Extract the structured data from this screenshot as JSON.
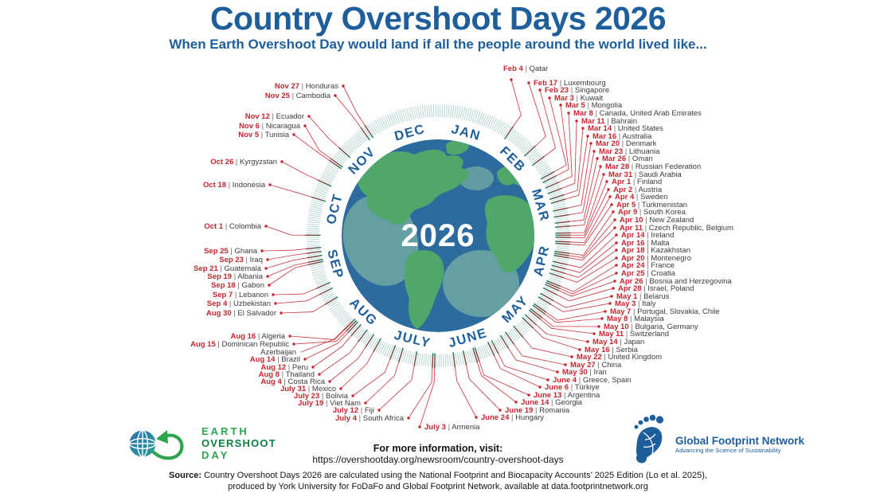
{
  "chart_data": {
    "type": "radial_calendar",
    "title": "Country Overshoot Days 2026",
    "subtitle": "When Earth Overshoot Day would land if all the people around the world lived like...",
    "center_year": "2026",
    "months": [
      "JAN",
      "FEB",
      "MAR",
      "APR",
      "MAY",
      "JUNE",
      "JULY",
      "AUG",
      "SEP",
      "OCT",
      "NOV",
      "DEC"
    ],
    "legend_note": "date | country",
    "entries": [
      {
        "date": "Feb 4",
        "countries": "Qatar"
      },
      {
        "date": "Feb 17",
        "countries": "Luxembourg"
      },
      {
        "date": "Feb 23",
        "countries": "Singapore"
      },
      {
        "date": "Mar 3",
        "countries": "Kuwait"
      },
      {
        "date": "Mar 5",
        "countries": "Mongolia"
      },
      {
        "date": "Mar 8",
        "countries": "Canada, United Arab Emirates"
      },
      {
        "date": "Mar 11",
        "countries": "Bahrain"
      },
      {
        "date": "Mar 14",
        "countries": "United States"
      },
      {
        "date": "Mar 16",
        "countries": "Australia"
      },
      {
        "date": "Mar 20",
        "countries": "Denmark"
      },
      {
        "date": "Mar 23",
        "countries": "Lithuania"
      },
      {
        "date": "Mar 26",
        "countries": "Oman"
      },
      {
        "date": "Mar 28",
        "countries": "Russian Federation"
      },
      {
        "date": "Mar 31",
        "countries": "Saudi Arabia"
      },
      {
        "date": "Apr 1",
        "countries": "Finland"
      },
      {
        "date": "Apr 2",
        "countries": "Austria"
      },
      {
        "date": "Apr 4",
        "countries": "Sweden"
      },
      {
        "date": "Apr 5",
        "countries": "Turkmenistan"
      },
      {
        "date": "Apr 9",
        "countries": "South Korea"
      },
      {
        "date": "Apr 10",
        "countries": "New Zealand"
      },
      {
        "date": "Apr 11",
        "countries": "Czech Republic, Belgium"
      },
      {
        "date": "Apr 14",
        "countries": "Ireland"
      },
      {
        "date": "Apr 16",
        "countries": "Malta"
      },
      {
        "date": "Apr 18",
        "countries": "Kazakhstan"
      },
      {
        "date": "Apr 20",
        "countries": "Montenegro"
      },
      {
        "date": "Apr 24",
        "countries": "France"
      },
      {
        "date": "Apr 25",
        "countries": "Croatia"
      },
      {
        "date": "Apr 26",
        "countries": "Bosnia and Herzegovina"
      },
      {
        "date": "Apr 28",
        "countries": "Israel, Poland"
      },
      {
        "date": "May 1",
        "countries": "Belarus"
      },
      {
        "date": "May 3",
        "countries": "Italy"
      },
      {
        "date": "May 7",
        "countries": "Portugal, Slovakia, Chile"
      },
      {
        "date": "May 8",
        "countries": "Malaysia"
      },
      {
        "date": "May 10",
        "countries": "Bulgaria, Germany"
      },
      {
        "date": "May 11",
        "countries": "Switzerland"
      },
      {
        "date": "May 14",
        "countries": "Japan"
      },
      {
        "date": "May 16",
        "countries": "Serbia"
      },
      {
        "date": "May 22",
        "countries": "United Kingdom"
      },
      {
        "date": "May 27",
        "countries": "China"
      },
      {
        "date": "May 30",
        "countries": "Iran"
      },
      {
        "date": "June 4",
        "countries": "Greece, Spain"
      },
      {
        "date": "June 6",
        "countries": "Türkiye"
      },
      {
        "date": "June 13",
        "countries": "Argentina"
      },
      {
        "date": "June 14",
        "countries": "Georgia"
      },
      {
        "date": "June 19",
        "countries": "Romania"
      },
      {
        "date": "June 24",
        "countries": "Hungary"
      },
      {
        "date": "July 3",
        "countries": "Armenia"
      },
      {
        "date": "July 4",
        "countries": "South Africa"
      },
      {
        "date": "July 12",
        "countries": "Fiji"
      },
      {
        "date": "July 19",
        "countries": "Viet Nam"
      },
      {
        "date": "July 23",
        "countries": "Bolivia"
      },
      {
        "date": "July 31",
        "countries": "Mexico"
      },
      {
        "date": "Aug 4",
        "countries": "Costa Rica"
      },
      {
        "date": "Aug 8",
        "countries": "Thailand"
      },
      {
        "date": "Aug 12",
        "countries": "Peru"
      },
      {
        "date": "Aug 14",
        "countries": "Brazil"
      },
      {
        "date": "Aug 15",
        "countries": "Dominican Republic, Azerbaijan"
      },
      {
        "date": "Aug 16",
        "countries": "Algeria"
      },
      {
        "date": "Aug 30",
        "countries": "El Salvador"
      },
      {
        "date": "Sep 4",
        "countries": "Uzbekistan"
      },
      {
        "date": "Sep 7",
        "countries": "Lebanon"
      },
      {
        "date": "Sep 18",
        "countries": "Gabon"
      },
      {
        "date": "Sep 19",
        "countries": "Albania"
      },
      {
        "date": "Sep 21",
        "countries": "Guatemala"
      },
      {
        "date": "Sep 23",
        "countries": "Iraq"
      },
      {
        "date": "Sep 25",
        "countries": "Ghana"
      },
      {
        "date": "Oct 1",
        "countries": "Colombia"
      },
      {
        "date": "Oct 18",
        "countries": "Indonesia"
      },
      {
        "date": "Oct 26",
        "countries": "Kyrgyzstan"
      },
      {
        "date": "Nov 5",
        "countries": "Tunisia"
      },
      {
        "date": "Nov 6",
        "countries": "Nicaragua"
      },
      {
        "date": "Nov 12",
        "countries": "Ecuador"
      },
      {
        "date": "Nov 25",
        "countries": "Cambodia"
      },
      {
        "date": "Nov 27",
        "countries": "Honduras"
      }
    ]
  },
  "footer": {
    "info_heading": "For more information, visit:",
    "info_url": "https://overshootday.org/newsroom/country-overshoot-days",
    "source_label": "Source:",
    "source_line1": "Country Overshoot Days 2026 are calculated using the National Footprint and Biocapacity Accounts’ 2025 Edition (Lo et al. 2025),",
    "source_line2": "produced by York University for FoDaFo and Global Footprint Network, available at data.footprintnetwork.org"
  },
  "logos": {
    "eod": {
      "line1": "EARTH",
      "line2": "OVERSHOOT",
      "line3": "DAY"
    },
    "gfn": {
      "name": "Global Footprint Network",
      "tagline": "Advancing the Science of Sustainability"
    }
  },
  "colors": {
    "title_blue": "#1e5f9b",
    "date_red": "#c5262f",
    "country_gray": "#3d3d3d",
    "tick_teal": "#a8cfc9",
    "tick_dark": "#27795d",
    "ocean_blue": "#2d6b9e",
    "land_green": "#4fa869",
    "land_teal": "#70a8a3",
    "eod_green": "#2fa44f",
    "gfn_blue": "#1d5e9b"
  }
}
